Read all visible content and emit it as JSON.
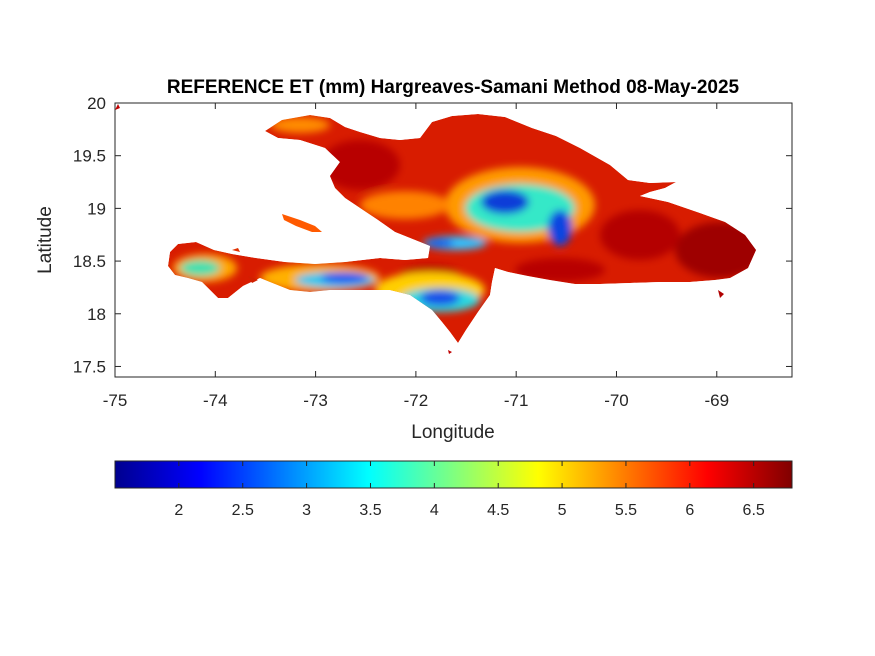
{
  "title": "REFERENCE ET (mm) Hargreaves-Samani Method  08-May-2025",
  "x_axis": {
    "label": "Longitude",
    "ticks": [
      -75,
      -74,
      -73,
      -72,
      -71,
      -70,
      -69
    ],
    "range": [
      -75,
      -68.25
    ]
  },
  "y_axis": {
    "label": "Latitude",
    "ticks": [
      17.5,
      18,
      18.5,
      19,
      19.5,
      20
    ],
    "range": [
      17.4,
      20
    ]
  },
  "colorbar": {
    "colormap": "jet",
    "range": [
      1.5,
      6.8
    ],
    "ticks": [
      2,
      2.5,
      3,
      3.5,
      4,
      4.5,
      5,
      5.5,
      6,
      6.5
    ],
    "orientation": "horizontal"
  },
  "colors": {
    "high": "#a00000",
    "mid_high": "#e62000",
    "mid": "#ffc400",
    "low_mid": "#22e5d5",
    "low": "#0a3cd8"
  }
}
